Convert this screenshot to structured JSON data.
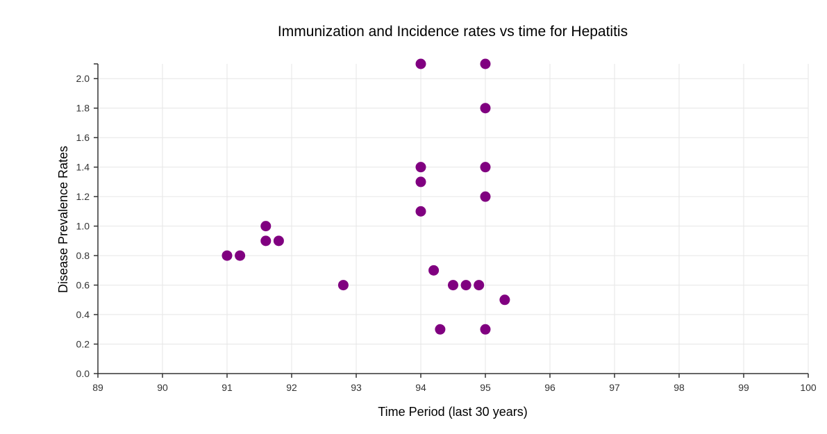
{
  "chart_data": {
    "type": "scatter",
    "title": "Immunization and Incidence rates vs time for Hepatitis",
    "xlabel": "Time Period (last 30 years)",
    "ylabel": "Disease Prevalence Rates",
    "xlim": [
      89,
      100
    ],
    "ylim": [
      0,
      2.1
    ],
    "xticks": [
      "89",
      "90",
      "91",
      "92",
      "93",
      "94",
      "95",
      "96",
      "97",
      "98",
      "99",
      "100"
    ],
    "yticks": [
      "0.0",
      "0.2",
      "0.4",
      "0.6",
      "0.8",
      "1.0",
      "1.2",
      "1.4",
      "1.6",
      "1.8",
      "2.0"
    ],
    "grid": true,
    "point_color": "#800080",
    "points": [
      {
        "x": 91.0,
        "y": 0.8
      },
      {
        "x": 91.2,
        "y": 0.8
      },
      {
        "x": 91.6,
        "y": 1.0
      },
      {
        "x": 91.6,
        "y": 0.9
      },
      {
        "x": 91.8,
        "y": 0.9
      },
      {
        "x": 92.8,
        "y": 0.6
      },
      {
        "x": 94.0,
        "y": 2.1
      },
      {
        "x": 94.0,
        "y": 1.4
      },
      {
        "x": 94.0,
        "y": 1.3
      },
      {
        "x": 94.0,
        "y": 1.1
      },
      {
        "x": 94.2,
        "y": 0.7
      },
      {
        "x": 94.3,
        "y": 0.3
      },
      {
        "x": 94.5,
        "y": 0.6
      },
      {
        "x": 94.7,
        "y": 0.6
      },
      {
        "x": 94.9,
        "y": 0.6
      },
      {
        "x": 95.0,
        "y": 2.1
      },
      {
        "x": 95.0,
        "y": 1.8
      },
      {
        "x": 95.0,
        "y": 1.4
      },
      {
        "x": 95.0,
        "y": 1.2
      },
      {
        "x": 95.0,
        "y": 0.3
      },
      {
        "x": 95.3,
        "y": 0.5
      }
    ]
  }
}
